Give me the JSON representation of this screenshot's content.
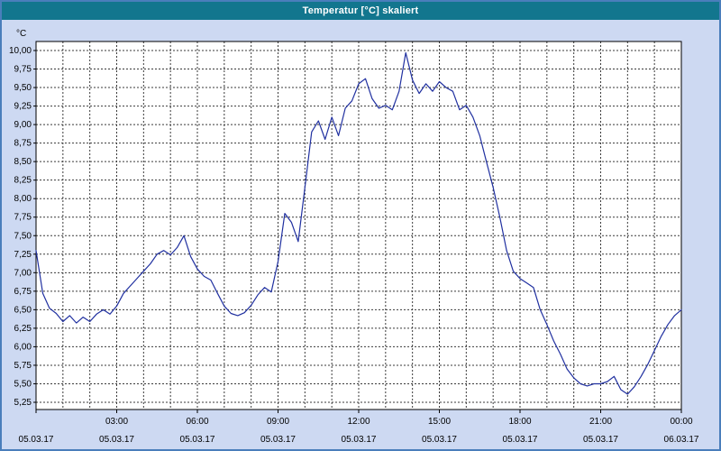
{
  "window": {
    "title": "Temperatur [°C] skaliert"
  },
  "colors": {
    "title_bar": "#12768e",
    "title_text": "#ffffff",
    "window_bg": "#cdd9f2",
    "window_border": "#4a7ebb",
    "plot_bg": "#ffffff",
    "frame": "#000000",
    "grid": "#3a3a3a",
    "line": "#2030a0",
    "label_text": "#000000"
  },
  "chart_data": {
    "type": "line",
    "title": "Temperatur [°C] skaliert",
    "ylabel": "°C",
    "xlabel": "",
    "ylim": [
      5.25,
      10.0
    ],
    "ytick_step": 0.25,
    "grid": true,
    "legend": "none",
    "ytick_values": [
      10.0,
      9.75,
      9.5,
      9.25,
      9.0,
      8.75,
      8.5,
      8.25,
      8.0,
      7.75,
      7.5,
      7.25,
      7.0,
      6.75,
      6.5,
      6.25,
      6.0,
      5.75,
      5.5,
      5.25
    ],
    "ytick_labels": [
      "10,00",
      "9,75",
      "9,50",
      "9,25",
      "9,00",
      "8,75",
      "8,50",
      "8,25",
      "8,00",
      "7,75",
      "7,50",
      "7,25",
      "7,00",
      "6,75",
      "6,50",
      "6,25",
      "6,00",
      "5,75",
      "5,50",
      "5,25"
    ],
    "xticks": [
      {
        "hour": 0,
        "time": "",
        "date": "05.03.17"
      },
      {
        "hour": 3,
        "time": "03:00",
        "date": "05.03.17"
      },
      {
        "hour": 6,
        "time": "06:00",
        "date": "05.03.17"
      },
      {
        "hour": 9,
        "time": "09:00",
        "date": "05.03.17"
      },
      {
        "hour": 12,
        "time": "12:00",
        "date": "05.03.17"
      },
      {
        "hour": 15,
        "time": "15:00",
        "date": "05.03.17"
      },
      {
        "hour": 18,
        "time": "18:00",
        "date": "05.03.17"
      },
      {
        "hour": 21,
        "time": "21:00",
        "date": "05.03.17"
      },
      {
        "hour": 24,
        "time": "00:00",
        "date": "06.03.17"
      }
    ],
    "x_start_hour": 0,
    "x_step_hours": 0.25,
    "x_range_hours": [
      0,
      24
    ],
    "minor_x_grid_every_hours": 1,
    "series": [
      {
        "name": "Temperatur",
        "values": [
          7.3,
          6.72,
          6.52,
          6.45,
          6.34,
          6.42,
          6.32,
          6.4,
          6.34,
          6.44,
          6.5,
          6.44,
          6.55,
          6.72,
          6.82,
          6.92,
          7.02,
          7.12,
          7.25,
          7.3,
          7.24,
          7.34,
          7.5,
          7.22,
          7.05,
          6.95,
          6.9,
          6.72,
          6.55,
          6.45,
          6.42,
          6.46,
          6.56,
          6.7,
          6.8,
          6.74,
          7.15,
          7.8,
          7.68,
          7.42,
          8.15,
          8.9,
          9.05,
          8.8,
          9.1,
          8.85,
          9.22,
          9.32,
          9.55,
          9.62,
          9.35,
          9.22,
          9.26,
          9.2,
          9.45,
          9.97,
          9.6,
          9.42,
          9.55,
          9.45,
          9.58,
          9.5,
          9.45,
          9.2,
          9.26,
          9.1,
          8.85,
          8.5,
          8.15,
          7.75,
          7.3,
          7.02,
          6.92,
          6.86,
          6.8,
          6.5,
          6.3,
          6.08,
          5.9,
          5.7,
          5.58,
          5.5,
          5.47,
          5.5,
          5.5,
          5.53,
          5.6,
          5.42,
          5.36,
          5.46,
          5.6,
          5.76,
          5.95,
          6.14,
          6.3,
          6.42,
          6.5
        ]
      }
    ]
  }
}
